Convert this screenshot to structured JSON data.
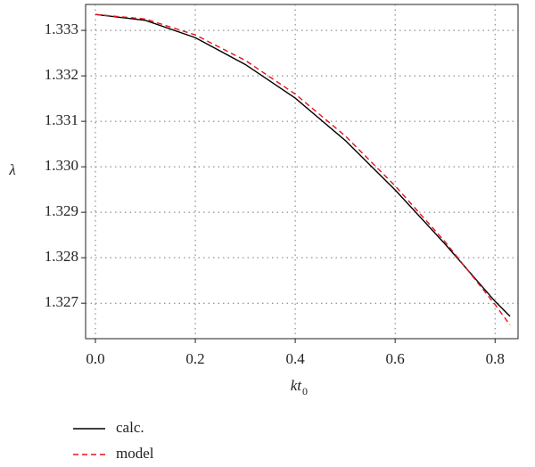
{
  "chart_data": {
    "type": "line",
    "x_label": "kt",
    "x_label_subscript": "0",
    "y_label": "λ",
    "x": [
      0,
      0.1,
      0.2,
      0.3,
      0.4,
      0.5,
      0.6,
      0.7,
      0.8,
      0.83
    ],
    "series": [
      {
        "name": "calc.",
        "color": "#000000",
        "dash": false,
        "values": [
          1.33335,
          1.33322,
          1.33284,
          1.33225,
          1.33151,
          1.33058,
          1.32949,
          1.3283,
          1.32704,
          1.32671
        ]
      },
      {
        "name": "model",
        "color": "#e8101c",
        "dash": true,
        "values": [
          1.33335,
          1.33325,
          1.3329,
          1.33234,
          1.3316,
          1.33068,
          1.32958,
          1.32835,
          1.32697,
          1.32652
        ]
      }
    ],
    "xlim": [
      -0.0196,
      0.846
    ],
    "ylim": [
      1.32622,
      1.33357
    ],
    "xticks": [
      {
        "value": 0,
        "label": "0.0"
      },
      0.2,
      0.4,
      0.6,
      0.8
    ],
    "yticks": [
      1.327,
      1.328,
      1.329,
      1.33,
      1.331,
      1.332,
      1.333
    ],
    "ytick_labels": [
      "1.327",
      "1.328",
      "1.329",
      "1.330",
      "1.331",
      "1.332",
      "1.333"
    ],
    "grid": true
  }
}
